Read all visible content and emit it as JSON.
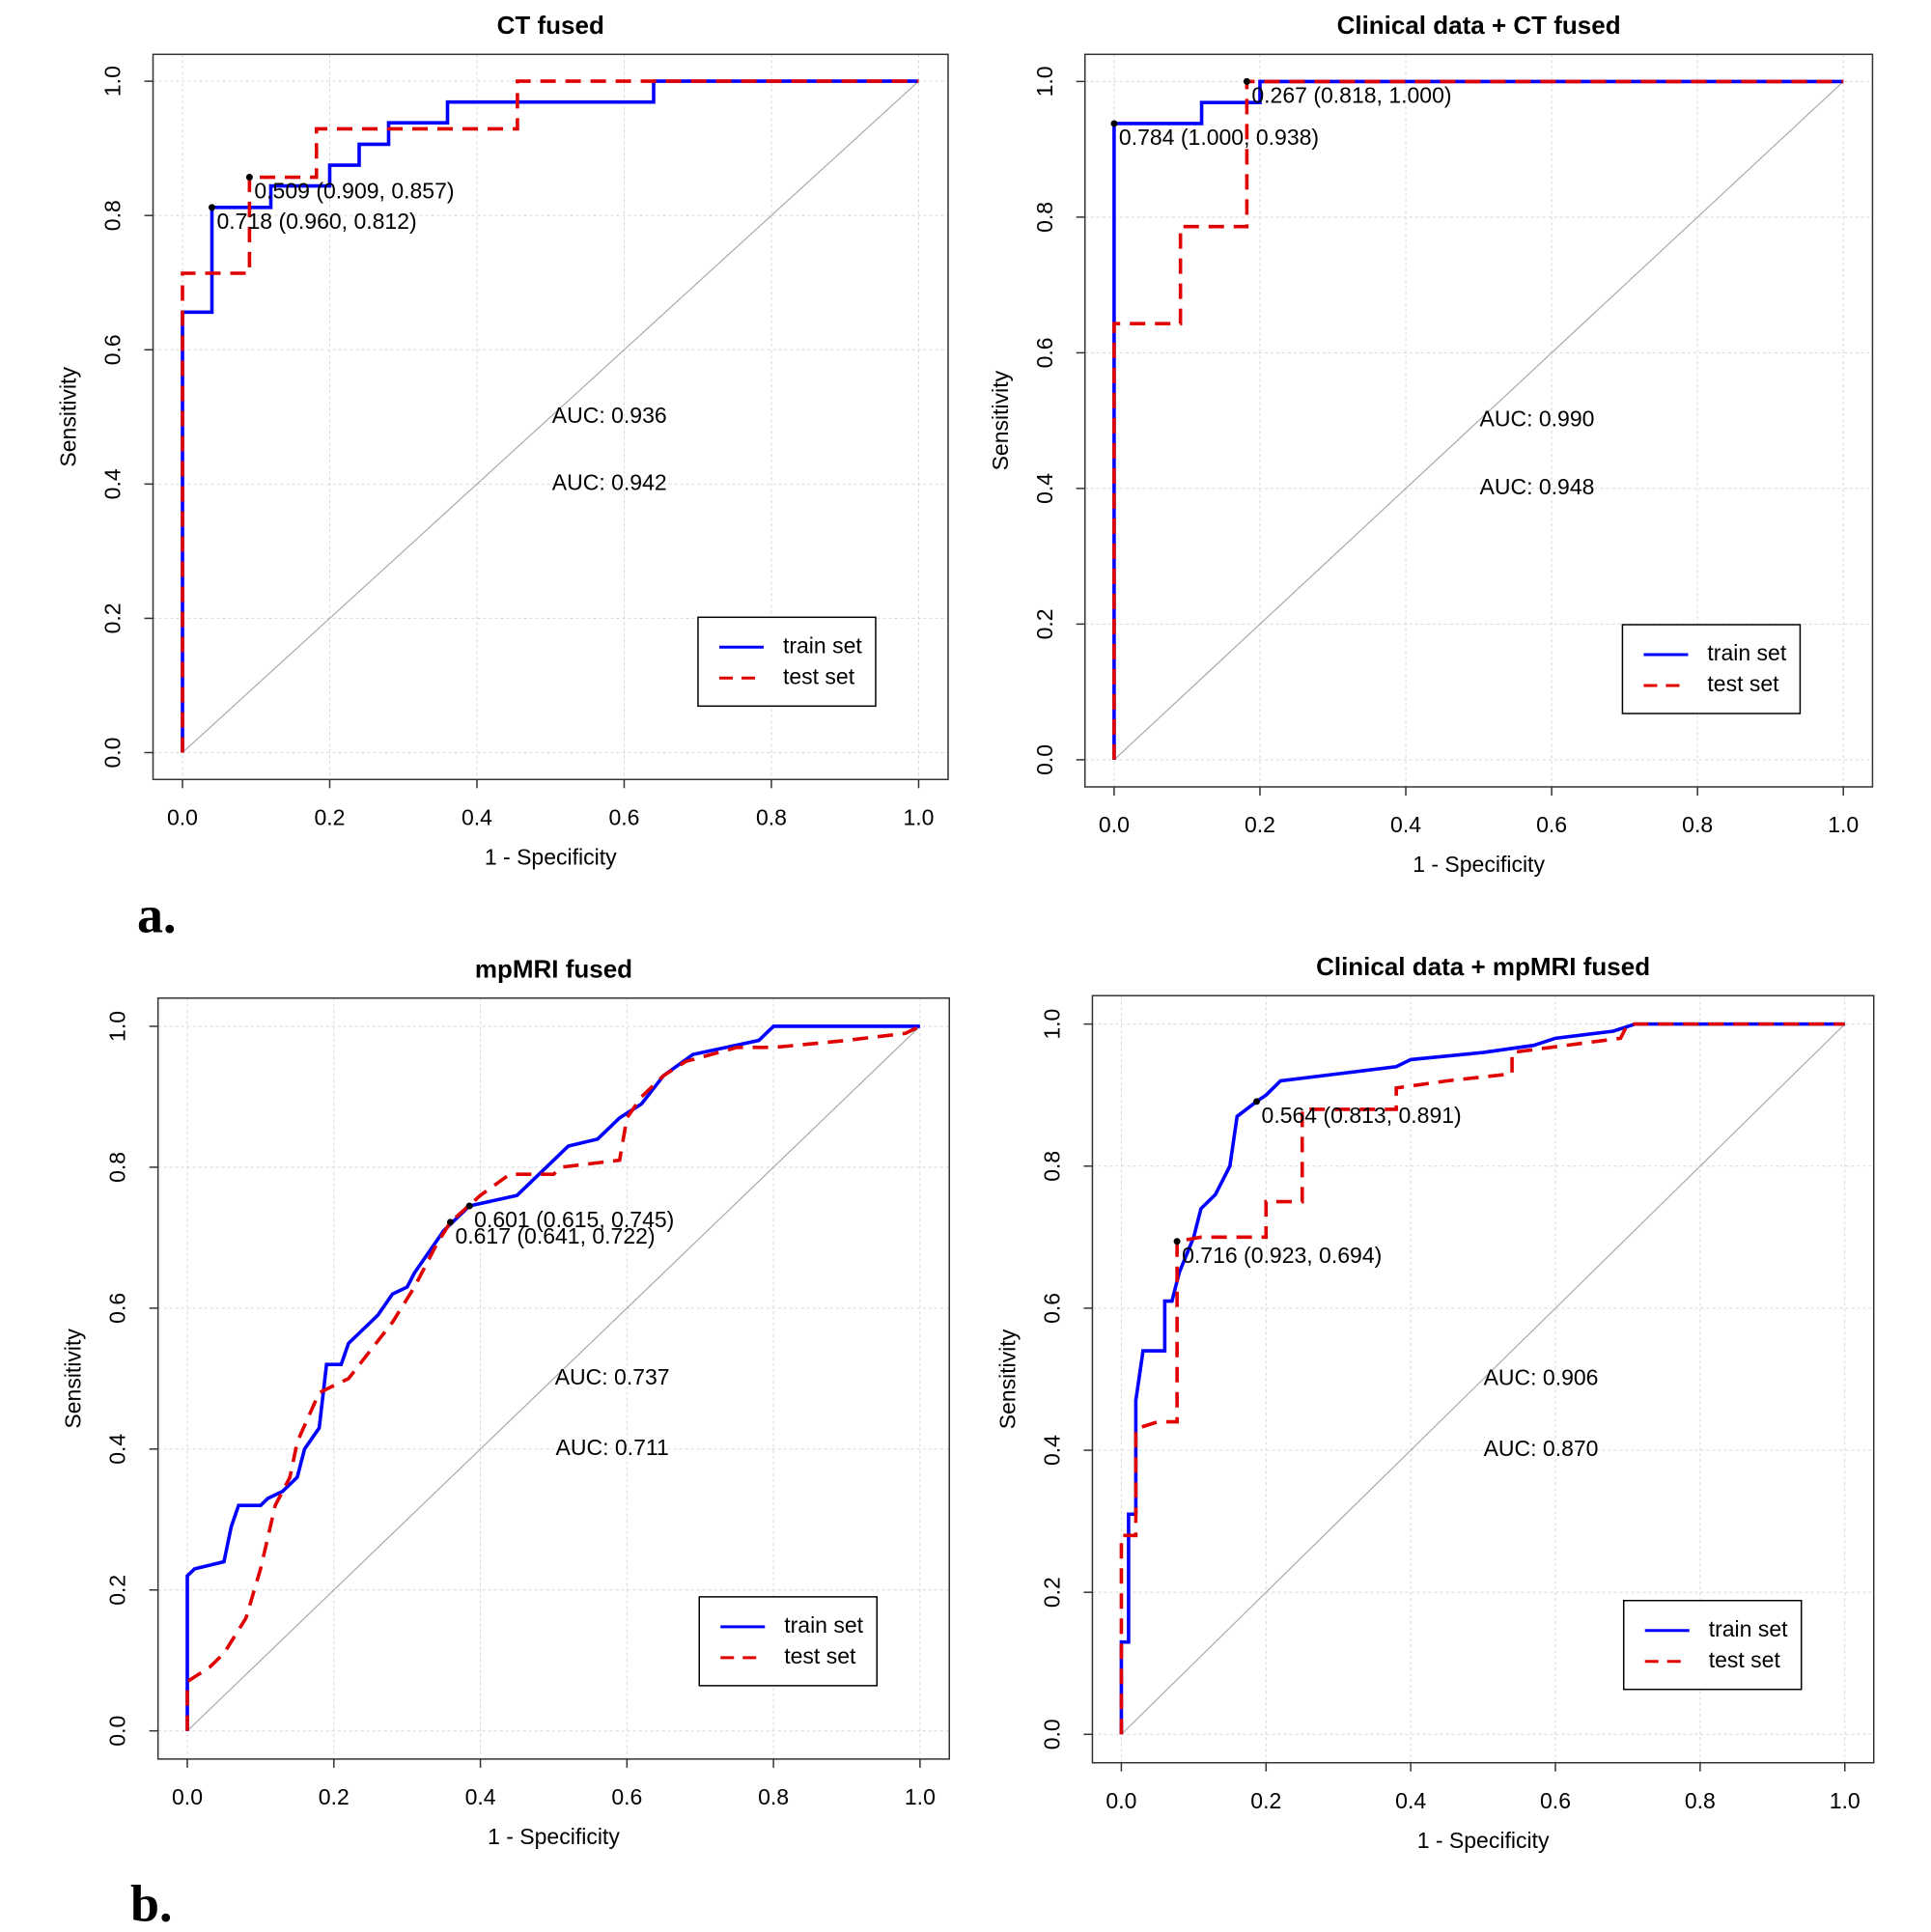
{
  "panel_labels": [
    "a.",
    "b."
  ],
  "chart_data": [
    {
      "type": "line",
      "title": "CT fused",
      "x_label": "1 - Specificity",
      "y_label": "Sensitivity",
      "xlim": [
        -0.04,
        1.04
      ],
      "ylim": [
        -0.04,
        1.04
      ],
      "xticks": [
        {
          "value": 0,
          "label": "0.0"
        },
        0.2,
        0.4,
        0.6,
        0.8,
        {
          "value": 1,
          "label": "1.0"
        }
      ],
      "yticks": [
        {
          "value": 0,
          "label": "0.0"
        },
        0.2,
        0.4,
        0.6,
        0.8,
        {
          "value": 1,
          "label": "1.0"
        }
      ],
      "grid": true,
      "legend": "bottom-right",
      "series": [
        {
          "name": "train set",
          "color": "#0000ff",
          "line_style": "solid",
          "x": [
            0,
            0,
            0.04,
            0.04,
            0.12,
            0.12,
            0.2,
            0.2,
            0.24,
            0.24,
            0.28,
            0.28,
            0.36,
            0.36,
            0.64,
            0.64,
            1
          ],
          "values": [
            0,
            0.656,
            0.656,
            0.812,
            0.812,
            0.844,
            0.844,
            0.875,
            0.875,
            0.906,
            0.906,
            0.938,
            0.938,
            0.969,
            0.969,
            1,
            1
          ]
        },
        {
          "name": "test set",
          "color": "#e00000",
          "line_style": "dashed",
          "x": [
            0,
            0,
            0.091,
            0.091,
            0.182,
            0.182,
            0.455,
            0.455,
            1
          ],
          "values": [
            0,
            0.714,
            0.714,
            0.857,
            0.857,
            0.929,
            0.929,
            1,
            1
          ]
        }
      ],
      "points": [
        {
          "label": "0.509 (0.909, 0.857)",
          "x": 0.091,
          "y": 0.857
        },
        {
          "label": "0.718 (0.960, 0.812)",
          "x": 0.04,
          "y": 0.812
        }
      ],
      "auc_labels": [
        {
          "text": "AUC: 0.936",
          "color": "#0000cc"
        },
        {
          "text": "AUC: 0.942",
          "color": "#e00000"
        }
      ]
    },
    {
      "type": "line",
      "title": "Clinical data + CT fused",
      "x_label": "1 - Specificity",
      "y_label": "Sensitivity",
      "xlim": [
        -0.04,
        1.04
      ],
      "ylim": [
        -0.04,
        1.04
      ],
      "xticks": [
        {
          "value": 0,
          "label": "0.0"
        },
        0.2,
        0.4,
        0.6,
        0.8,
        {
          "value": 1,
          "label": "1.0"
        }
      ],
      "yticks": [
        {
          "value": 0,
          "label": "0.0"
        },
        0.2,
        0.4,
        0.6,
        0.8,
        {
          "value": 1,
          "label": "1.0"
        }
      ],
      "grid": true,
      "legend": "bottom-right",
      "series": [
        {
          "name": "train set",
          "color": "#0000ff",
          "line_style": "solid",
          "x": [
            0,
            0,
            0.12,
            0.12,
            0.2,
            0.2,
            1
          ],
          "values": [
            0,
            0.938,
            0.938,
            0.969,
            0.969,
            1,
            1
          ]
        },
        {
          "name": "test set",
          "color": "#e00000",
          "line_style": "dashed",
          "x": [
            0,
            0,
            0.091,
            0.091,
            0.182,
            0.182,
            1
          ],
          "values": [
            0,
            0.643,
            0.643,
            0.786,
            0.786,
            1,
            1
          ]
        }
      ],
      "points": [
        {
          "label": "0.267 (0.818, 1.000)",
          "x": 0.182,
          "y": 1
        },
        {
          "label": "0.784 (1.000, 0.938)",
          "x": 0,
          "y": 0.938
        }
      ],
      "auc_labels": [
        {
          "text": "AUC: 0.990",
          "color": "#0000cc"
        },
        {
          "text": "AUC: 0.948",
          "color": "#e00000"
        }
      ]
    },
    {
      "type": "line",
      "title": "mpMRI fused",
      "x_label": "1 - Specificity",
      "y_label": "Sensitivity",
      "xlim": [
        -0.04,
        1.04
      ],
      "ylim": [
        -0.04,
        1.04
      ],
      "xticks": [
        {
          "value": 0,
          "label": "0.0"
        },
        0.2,
        0.4,
        0.6,
        0.8,
        {
          "value": 1,
          "label": "1.0"
        }
      ],
      "yticks": [
        {
          "value": 0,
          "label": "0.0"
        },
        0.2,
        0.4,
        0.6,
        0.8,
        {
          "value": 1,
          "label": "1.0"
        }
      ],
      "grid": true,
      "legend": "bottom-right",
      "series": [
        {
          "name": "train set",
          "color": "#0000ff",
          "line_style": "solid",
          "x": [
            0,
            0,
            0.01,
            0.05,
            0.06,
            0.07,
            0.1,
            0.11,
            0.13,
            0.15,
            0.16,
            0.18,
            0.19,
            0.21,
            0.22,
            0.24,
            0.26,
            0.28,
            0.3,
            0.31,
            0.33,
            0.35,
            0.385,
            0.45,
            0.48,
            0.51,
            0.52,
            0.56,
            0.59,
            0.62,
            0.65,
            0.69,
            0.78,
            0.8,
            1
          ],
          "values": [
            0,
            0.22,
            0.23,
            0.24,
            0.29,
            0.32,
            0.32,
            0.33,
            0.34,
            0.36,
            0.4,
            0.43,
            0.52,
            0.52,
            0.55,
            0.57,
            0.59,
            0.62,
            0.63,
            0.65,
            0.68,
            0.71,
            0.745,
            0.76,
            0.79,
            0.82,
            0.83,
            0.84,
            0.87,
            0.89,
            0.93,
            0.96,
            0.98,
            1,
            1
          ]
        },
        {
          "name": "test set",
          "color": "#e00000",
          "line_style": "dashed",
          "x": [
            0,
            0,
            0.03,
            0.05,
            0.08,
            0.1,
            0.12,
            0.14,
            0.15,
            0.18,
            0.22,
            0.25,
            0.28,
            0.31,
            0.34,
            0.359,
            0.4,
            0.44,
            0.5,
            0.51,
            0.59,
            0.6,
            0.62,
            0.65,
            0.68,
            0.75,
            0.8,
            0.9,
            0.98,
            1
          ],
          "values": [
            0,
            0.07,
            0.09,
            0.11,
            0.16,
            0.23,
            0.32,
            0.36,
            0.41,
            0.48,
            0.5,
            0.54,
            0.58,
            0.63,
            0.69,
            0.722,
            0.76,
            0.79,
            0.79,
            0.8,
            0.81,
            0.87,
            0.9,
            0.93,
            0.95,
            0.97,
            0.97,
            0.98,
            0.99,
            1
          ]
        }
      ],
      "points": [
        {
          "label": "0.601 (0.615, 0.745)",
          "x": 0.385,
          "y": 0.745
        },
        {
          "label": "0.617 (0.641, 0.722)",
          "x": 0.359,
          "y": 0.722
        }
      ],
      "auc_labels": [
        {
          "text": "AUC: 0.737",
          "color": "#0000cc"
        },
        {
          "text": "AUC: 0.711",
          "color": "#e00000"
        }
      ]
    },
    {
      "type": "line",
      "title": "Clinical data + mpMRI fused",
      "x_label": "1 - Specificity",
      "y_label": "Sensitivity",
      "xlim": [
        -0.04,
        1.04
      ],
      "ylim": [
        -0.04,
        1.04
      ],
      "xticks": [
        {
          "value": 0,
          "label": "0.0"
        },
        0.2,
        0.4,
        0.6,
        0.8,
        {
          "value": 1,
          "label": "1.0"
        }
      ],
      "yticks": [
        {
          "value": 0,
          "label": "0.0"
        },
        0.2,
        0.4,
        0.6,
        0.8,
        {
          "value": 1,
          "label": "1.0"
        }
      ],
      "grid": true,
      "legend": "bottom-right",
      "series": [
        {
          "name": "train set",
          "color": "#0000ff",
          "line_style": "solid",
          "x": [
            0,
            0,
            0.01,
            0.01,
            0.02,
            0.02,
            0.03,
            0.06,
            0.06,
            0.07,
            0.08,
            0.1,
            0.11,
            0.13,
            0.15,
            0.16,
            0.187,
            0.2,
            0.22,
            0.3,
            0.38,
            0.4,
            0.5,
            0.57,
            0.6,
            0.68,
            0.71,
            1
          ],
          "values": [
            0,
            0.13,
            0.13,
            0.31,
            0.31,
            0.47,
            0.54,
            0.54,
            0.61,
            0.61,
            0.65,
            0.7,
            0.74,
            0.76,
            0.8,
            0.87,
            0.891,
            0.9,
            0.92,
            0.93,
            0.94,
            0.95,
            0.96,
            0.97,
            0.98,
            0.99,
            1,
            1
          ]
        },
        {
          "name": "test set",
          "color": "#e00000",
          "line_style": "dashed",
          "x": [
            0,
            0,
            0.02,
            0.02,
            0.05,
            0.077,
            0.077,
            0.11,
            0.2,
            0.2,
            0.25,
            0.25,
            0.38,
            0.38,
            0.45,
            0.54,
            0.54,
            0.69,
            0.7,
            1
          ],
          "values": [
            0,
            0.28,
            0.28,
            0.43,
            0.44,
            0.44,
            0.694,
            0.7,
            0.7,
            0.75,
            0.75,
            0.88,
            0.88,
            0.91,
            0.92,
            0.93,
            0.96,
            0.98,
            1,
            1
          ]
        }
      ],
      "points": [
        {
          "label": "0.564 (0.813, 0.891)",
          "x": 0.187,
          "y": 0.891
        },
        {
          "label": "0.716 (0.923, 0.694)",
          "x": 0.077,
          "y": 0.694
        }
      ],
      "auc_labels": [
        {
          "text": "AUC: 0.906",
          "color": "#0000cc"
        },
        {
          "text": "AUC: 0.870",
          "color": "#e00000"
        }
      ]
    }
  ]
}
